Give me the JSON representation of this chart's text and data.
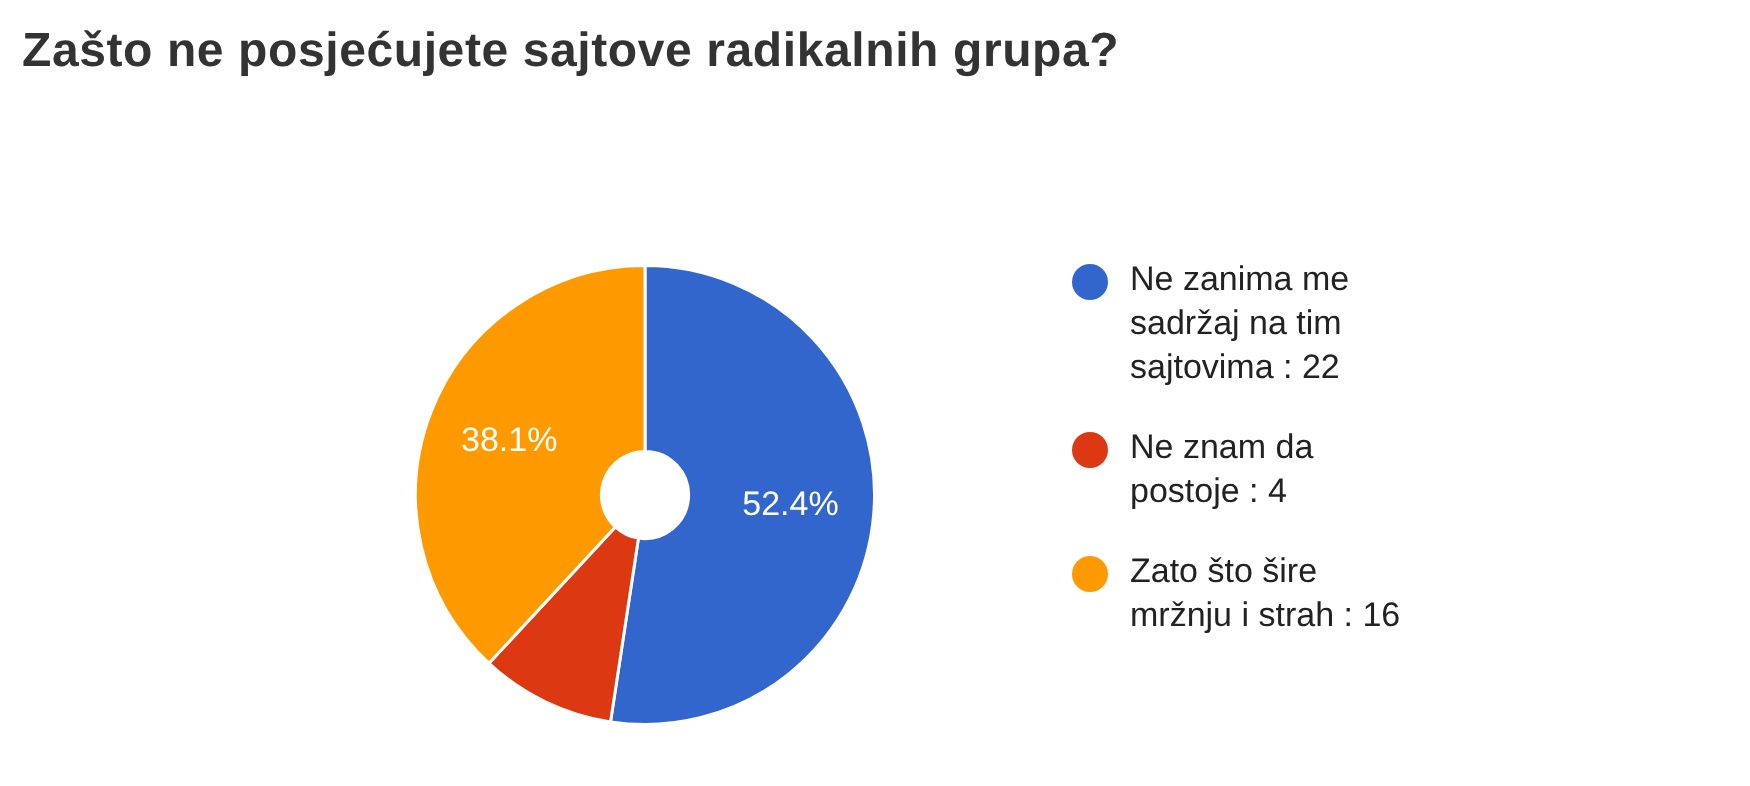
{
  "chart_data": {
    "type": "donut",
    "title": "Zašto ne posjećujete sajtove radikalnih grupa?",
    "categories": [
      "Ne zanima me sadržaj na tim sajtovima : 22",
      "Ne znam da postoje : 4",
      "Zato što šire mržnju i strah : 16"
    ],
    "values": [
      52.4,
      9.5,
      38.1
    ],
    "colors": [
      "#3366cc",
      "#dc3912",
      "#ff9900"
    ],
    "value_labels": [
      "52.4%",
      null,
      "38.1%"
    ],
    "legend": "right"
  }
}
